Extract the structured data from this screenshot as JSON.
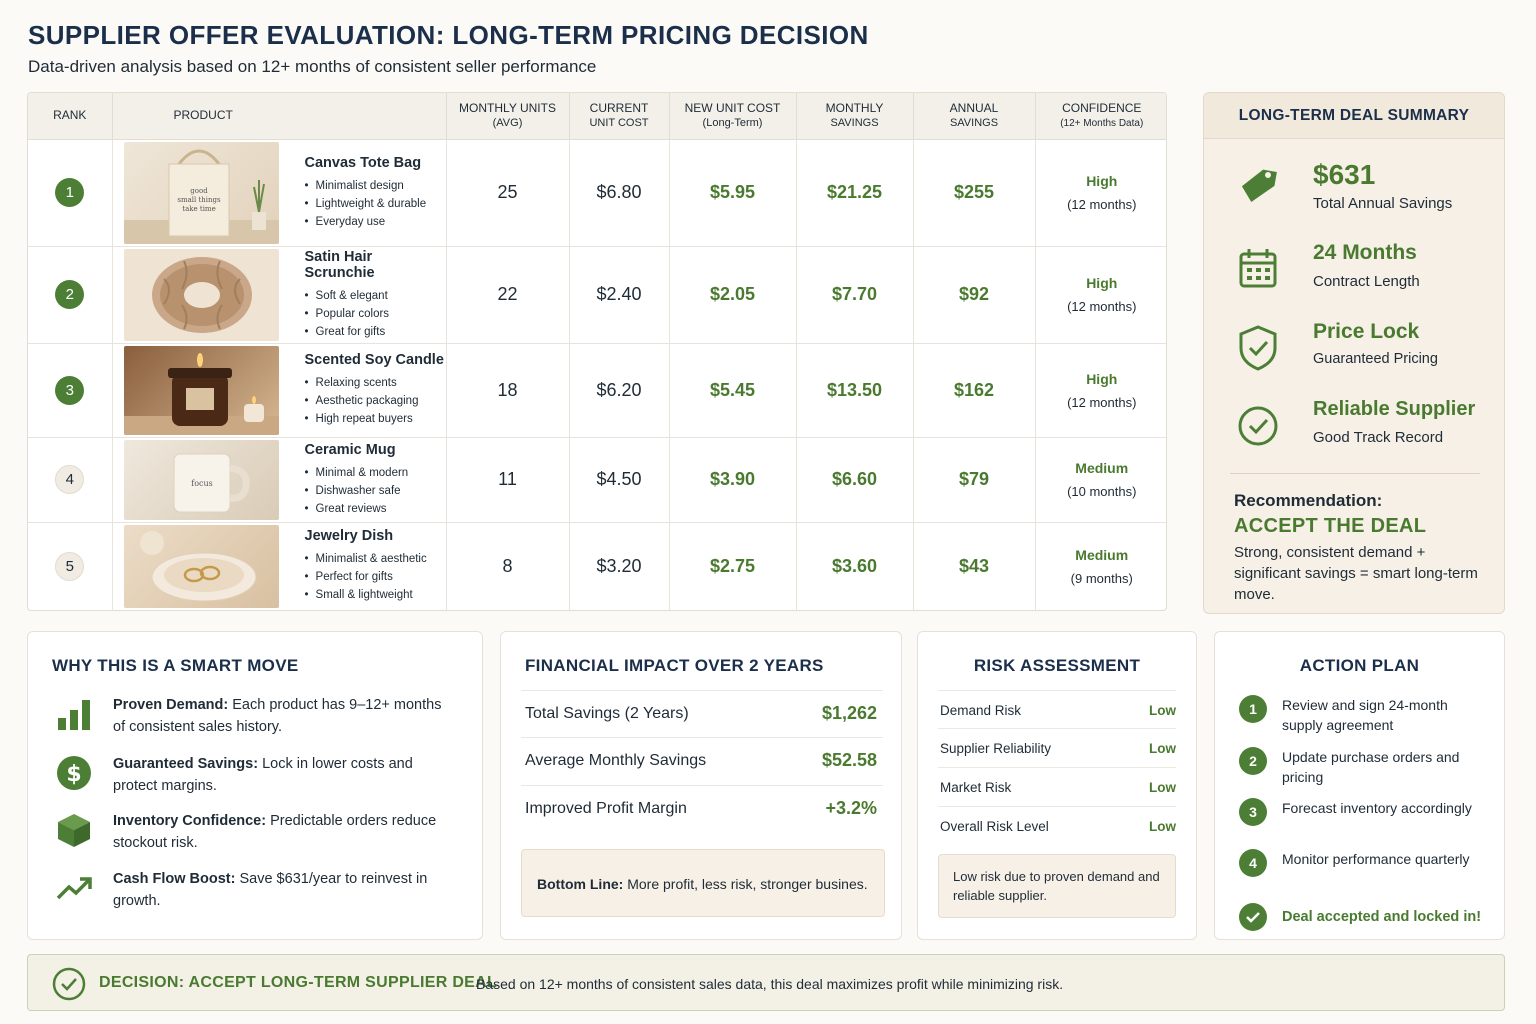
{
  "header": {
    "title": "SUPPLIER OFFER EVALUATION: LONG-TERM PRICING DECISION",
    "subtitle": "Data-driven analysis based on 12+ months of consistent seller performance"
  },
  "table": {
    "columns": {
      "rank": "RANK",
      "product": "PRODUCT",
      "monthly_units": "MONTHLY UNITS",
      "monthly_units_sub": "(AVG)",
      "current_cost": "CURRENT",
      "current_cost_sub": "UNIT COST",
      "new_cost": "NEW UNIT COST",
      "new_cost_sub": "(Long-Term)",
      "monthly_savings": "MONTHLY",
      "monthly_savings_sub": "SAVINGS",
      "annual_savings": "ANNUAL",
      "annual_savings_sub": "SAVINGS",
      "confidence": "CONFIDENCE",
      "confidence_sub": "(12+ Months Data)"
    },
    "rows": [
      {
        "rank": "1",
        "name": "Canvas Tote Bag",
        "features": [
          "Minimalist design",
          "Lightweight & durable",
          "Everyday use"
        ],
        "units": "25",
        "current": "$6.80",
        "new": "$5.95",
        "monthly": "$21.25",
        "annual": "$255",
        "conf": "High",
        "conf_sub": "(12 months)",
        "thumb_text": "good small things take time"
      },
      {
        "rank": "2",
        "name": "Satin Hair Scrunchie",
        "features": [
          "Soft & elegant",
          "Popular colors",
          "Great for gifts"
        ],
        "units": "22",
        "current": "$2.40",
        "new": "$2.05",
        "monthly": "$7.70",
        "annual": "$92",
        "conf": "High",
        "conf_sub": "(12 months)"
      },
      {
        "rank": "3",
        "name": "Scented Soy Candle",
        "features": [
          "Relaxing scents",
          "Aesthetic packaging",
          "High repeat buyers"
        ],
        "units": "18",
        "current": "$6.20",
        "new": "$5.45",
        "monthly": "$13.50",
        "annual": "$162",
        "conf": "High",
        "conf_sub": "(12 months)"
      },
      {
        "rank": "4",
        "name": "Ceramic Mug",
        "features": [
          "Minimal & modern",
          "Dishwasher safe",
          "Great reviews"
        ],
        "units": "11",
        "current": "$4.50",
        "new": "$3.90",
        "monthly": "$6.60",
        "annual": "$79",
        "conf": "Medium",
        "conf_sub": "(10 months)",
        "thumb_text": "focus"
      },
      {
        "rank": "5",
        "name": "Jewelry Dish",
        "features": [
          "Minimalist & aesthetic",
          "Perfect for gifts",
          "Small & lightweight"
        ],
        "units": "8",
        "current": "$3.20",
        "new": "$2.75",
        "monthly": "$3.60",
        "annual": "$43",
        "conf": "Medium",
        "conf_sub": "(9 months)"
      }
    ]
  },
  "summary": {
    "title": "LONG-TERM DEAL SUMMARY",
    "items": [
      {
        "big": "$631",
        "small": "Total Annual Savings",
        "icon": "price-tag-icon"
      },
      {
        "big": "24 Months",
        "small": "Contract Length",
        "icon": "calendar-icon"
      },
      {
        "big": "Price Lock",
        "small": "Guaranteed Pricing",
        "icon": "shield-check-icon"
      },
      {
        "big": "Reliable Supplier",
        "small": "Good Track Record",
        "icon": "check-circle-icon"
      }
    ],
    "recommendation_label": "Recommendation:",
    "recommendation_value": "ACCEPT THE DEAL",
    "recommendation_text": "Strong, consistent demand + significant savings = smart long-term move."
  },
  "why": {
    "title": "WHY THIS IS A SMART MOVE",
    "items": [
      {
        "bold": "Proven Demand:",
        "text": " Each product has 9–12+ months of consistent sales history.",
        "icon": "bar-chart-icon"
      },
      {
        "bold": "Guaranteed Savings:",
        "text": " Lock in lower costs and protect margins.",
        "icon": "dollar-icon"
      },
      {
        "bold": "Inventory Confidence:",
        "text": " Predictable orders reduce stockout risk.",
        "icon": "box-icon"
      },
      {
        "bold": "Cash Flow Boost:",
        "text": " Save $631/year to reinvest in growth.",
        "icon": "trend-up-icon"
      }
    ]
  },
  "financial": {
    "title": "FINANCIAL IMPACT OVER 2 YEARS",
    "rows": [
      {
        "label": "Total Savings (2 Years)",
        "value": "$1,262"
      },
      {
        "label": "Average Monthly Savings",
        "value": "$52.58"
      },
      {
        "label": "Improved Profit Margin",
        "value": "+3.2%"
      }
    ],
    "bottom_line_bold": "Bottom Line:",
    "bottom_line_text": " More profit, less risk, stronger busines."
  },
  "risk": {
    "title": "RISK ASSESSMENT",
    "rows": [
      {
        "label": "Demand Risk",
        "value": "Low"
      },
      {
        "label": "Supplier Reliability",
        "value": "Low"
      },
      {
        "label": "Market Risk",
        "value": "Low"
      },
      {
        "label": "Overall Risk Level",
        "value": "Low"
      }
    ],
    "note": "Low risk due to proven demand and reliable supplier."
  },
  "action": {
    "title": "ACTION PLAN",
    "steps": [
      {
        "num": "1",
        "text": "Review and sign 24-month supply agreement"
      },
      {
        "num": "2",
        "text": "Update purchase orders and pricing"
      },
      {
        "num": "3",
        "text": "Forecast inventory accordingly"
      },
      {
        "num": "4",
        "text": "Monitor performance quarterly"
      }
    ],
    "done": "Deal accepted and locked in!"
  },
  "decision": {
    "title": "DECISION: ACCEPT LONG-TERM SUPPLIER DEAL",
    "text": "Based on 12+ months of consistent sales data, this deal maximizes profit while minimizing risk."
  },
  "colors": {
    "accent_green": "#4a7a2f",
    "navy": "#1b2f4b",
    "beige": "#f6f0e7"
  }
}
